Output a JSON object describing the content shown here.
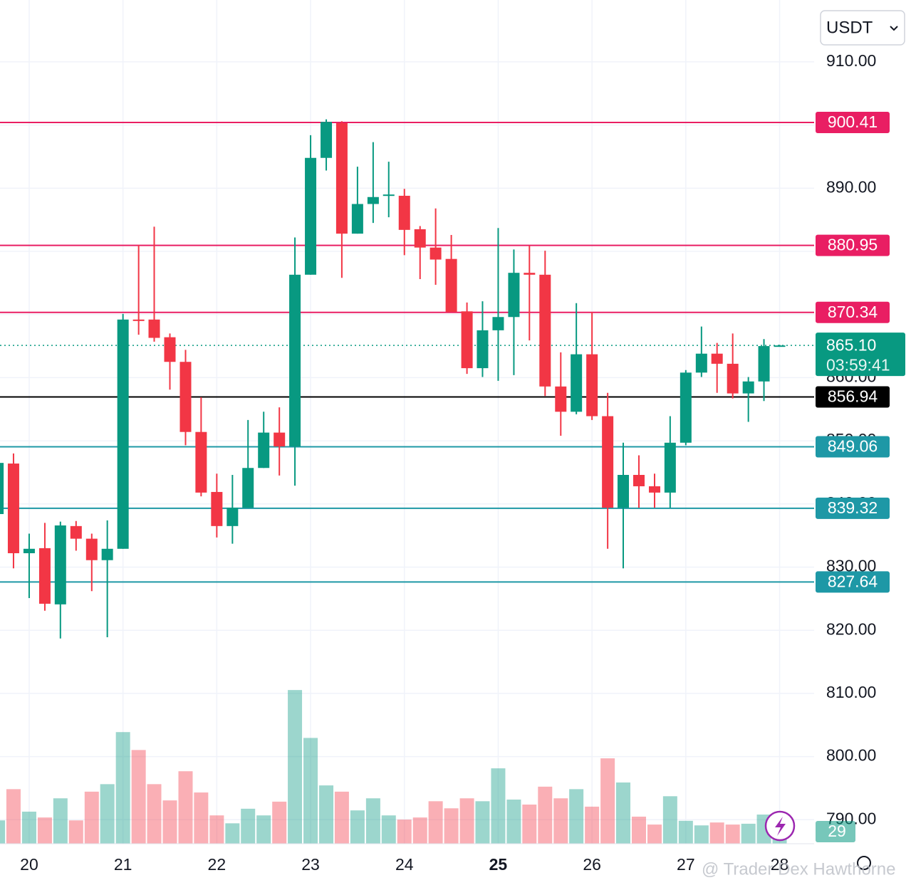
{
  "chart_data": {
    "type": "candlestick",
    "currency": "USDT",
    "watermark": "@ Trader Dex Hawthorne",
    "up_color": "#089981",
    "down_color": "#f23645",
    "x": [
      19.667,
      19.833,
      20.0,
      20.167,
      20.333,
      20.5,
      20.667,
      20.833,
      21.0,
      21.167,
      21.333,
      21.5,
      21.667,
      21.833,
      22.0,
      22.167,
      22.333,
      22.5,
      22.667,
      22.833,
      23.0,
      23.167,
      23.333,
      23.5,
      23.667,
      23.833,
      24.0,
      24.167,
      24.333,
      24.5,
      24.667,
      24.833,
      25.0,
      25.167,
      25.333,
      25.5,
      25.667,
      25.833,
      26.0,
      26.167,
      26.333,
      26.5,
      26.667,
      26.833,
      27.0,
      27.167,
      27.333,
      27.5,
      27.667,
      27.833,
      28.0
    ],
    "open": [
      838.4,
      846.4,
      832.2,
      833.0,
      824.1,
      836.5,
      834.5,
      831.1,
      832.9,
      869.2,
      869.2,
      866.4,
      862.5,
      851.4,
      841.9,
      836.5,
      839.4,
      845.7,
      851.3,
      849.1,
      876.3,
      894.8,
      900.3,
      882.8,
      887.5,
      888.8,
      888.8,
      883.5,
      880.6,
      878.8,
      870.5,
      861.5,
      867.5,
      869.6,
      876.6,
      876.3,
      858.6,
      854.6,
      863.7,
      853.9,
      839.4,
      844.6,
      842.8,
      841.8,
      849.7,
      860.8,
      863.8,
      862.2,
      857.5,
      859.4,
      865.0
    ],
    "high": [
      847.0,
      848.0,
      835.3,
      837.0,
      837.2,
      837.3,
      835.3,
      837.4,
      870.1,
      881.0,
      883.9,
      867.0,
      864.4,
      856.9,
      844.8,
      844.6,
      853.3,
      854.6,
      855.3,
      882.2,
      898.4,
      900.9,
      900.6,
      893.4,
      897.3,
      894.2,
      889.9,
      884.0,
      886.8,
      882.6,
      871.9,
      872.1,
      883.7,
      880.3,
      880.9,
      880.1,
      864.0,
      871.8,
      870.4,
      857.6,
      849.7,
      847.7,
      844.8,
      853.9,
      861.2,
      868.1,
      865.5,
      867.0,
      860.1,
      866.1,
      865.2
    ],
    "low": [
      838.0,
      829.8,
      825.1,
      823.1,
      818.7,
      832.6,
      826.2,
      818.9,
      832.9,
      866.8,
      865.7,
      858.1,
      849.3,
      841.2,
      834.7,
      833.7,
      839.4,
      845.7,
      844.5,
      842.9,
      876.3,
      892.8,
      875.8,
      882.8,
      884.5,
      885.4,
      879.4,
      875.6,
      874.7,
      870.4,
      860.6,
      860.1,
      859.5,
      860.4,
      865.9,
      857.1,
      850.8,
      854.2,
      853.3,
      832.9,
      829.8,
      839.4,
      839.4,
      839.4,
      849.3,
      860.1,
      857.6,
      856.7,
      853.0,
      856.3,
      864.9
    ],
    "close": [
      846.5,
      832.2,
      832.9,
      824.2,
      836.6,
      834.5,
      831.1,
      832.9,
      869.2,
      869.0,
      866.3,
      862.5,
      851.4,
      841.8,
      836.5,
      839.4,
      845.7,
      851.3,
      849.1,
      876.3,
      894.8,
      900.5,
      882.8,
      887.5,
      888.6,
      889.0,
      883.4,
      880.6,
      878.7,
      870.4,
      861.5,
      867.5,
      869.6,
      876.6,
      876.3,
      858.6,
      854.6,
      863.7,
      853.9,
      839.4,
      844.6,
      842.8,
      841.8,
      849.7,
      860.8,
      863.8,
      862.2,
      857.5,
      859.4,
      865.0,
      865.1
    ],
    "volume": [
      56,
      131,
      77,
      63,
      109,
      56,
      125,
      143,
      268,
      225,
      143,
      104,
      174,
      123,
      68,
      49,
      84,
      68,
      101,
      369,
      254,
      140,
      125,
      80,
      109,
      68,
      58,
      63,
      102,
      85,
      109,
      102,
      181,
      106,
      94,
      137,
      109,
      131,
      89,
      205,
      147,
      65,
      46,
      114,
      55,
      44,
      51,
      46,
      48,
      70,
      29
    ],
    "volume_lim": [
      0,
      400
    ],
    "xlim": [
      19.689,
      28.368
    ],
    "xticks": [
      20,
      21,
      22,
      23,
      24,
      25,
      26,
      27,
      28
    ],
    "bold_xticks": [
      25
    ],
    "ylim": [
      786.2,
      919.8
    ],
    "yticks": [
      {
        "value": 910,
        "label": "910.00"
      },
      {
        "value": 900,
        "label": "900.00"
      },
      {
        "value": 890,
        "label": "890.00"
      },
      {
        "value": 880,
        "label": "880.00"
      },
      {
        "value": 870,
        "label": "870.00"
      },
      {
        "value": 860,
        "label": "860.00"
      },
      {
        "value": 850,
        "label": "850.00"
      },
      {
        "value": 840,
        "label": "840.00"
      },
      {
        "value": 830,
        "label": "830.00"
      },
      {
        "value": 820,
        "label": "820.00"
      },
      {
        "value": 810,
        "label": "810.00"
      },
      {
        "value": 800,
        "label": "800.00"
      },
      {
        "value": 790,
        "label": "790.00"
      }
    ],
    "grid": true,
    "price_lines": [
      {
        "value": 900.41,
        "color": "#e91e63"
      },
      {
        "value": 880.95,
        "color": "#e91e63"
      },
      {
        "value": 870.34,
        "color": "#e91e63"
      },
      {
        "value": 856.94,
        "color": "#000000"
      },
      {
        "value": 849.06,
        "color": "#1e98a6"
      },
      {
        "value": 839.32,
        "color": "#1e98a6"
      },
      {
        "value": 827.64,
        "color": "#1e98a6"
      }
    ],
    "last_price": {
      "value": 865.1,
      "label": "865.10"
    },
    "countdown": "03:59:41"
  }
}
